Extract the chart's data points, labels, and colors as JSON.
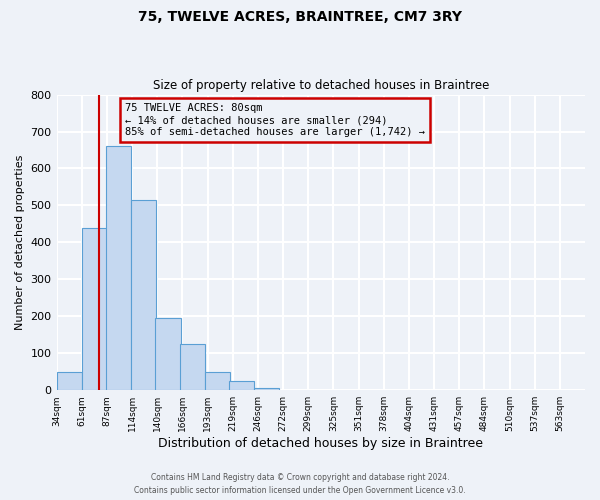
{
  "title": "75, TWELVE ACRES, BRAINTREE, CM7 3RY",
  "subtitle": "Size of property relative to detached houses in Braintree",
  "xlabel": "Distribution of detached houses by size in Braintree",
  "ylabel": "Number of detached properties",
  "bar_values": [
    50,
    440,
    660,
    515,
    195,
    125,
    50,
    25,
    5
  ],
  "bin_starts": [
    34,
    61,
    87,
    114,
    140,
    166,
    193,
    219,
    246
  ],
  "bin_width": 27,
  "all_bin_labels": [
    "34sqm",
    "61sqm",
    "87sqm",
    "114sqm",
    "140sqm",
    "166sqm",
    "193sqm",
    "219sqm",
    "246sqm",
    "272sqm",
    "299sqm",
    "325sqm",
    "351sqm",
    "378sqm",
    "404sqm",
    "431sqm",
    "457sqm",
    "484sqm",
    "510sqm",
    "537sqm",
    "563sqm"
  ],
  "bar_color": "#c5d8f0",
  "bar_edge_color": "#5a9fd4",
  "marker_x": 80,
  "marker_color": "#cc0000",
  "annotation_line1": "75 TWELVE ACRES: 80sqm",
  "annotation_line2": "← 14% of detached houses are smaller (294)",
  "annotation_line3": "85% of semi-detached houses are larger (1,742) →",
  "annotation_box_color": "#cc0000",
  "ylim": [
    0,
    800
  ],
  "yticks": [
    0,
    100,
    200,
    300,
    400,
    500,
    600,
    700,
    800
  ],
  "xlim_start": 34,
  "xlim_end": 601,
  "footer_line1": "Contains HM Land Registry data © Crown copyright and database right 2024.",
  "footer_line2": "Contains public sector information licensed under the Open Government Licence v3.0.",
  "background_color": "#eef2f8",
  "grid_color": "#ffffff"
}
